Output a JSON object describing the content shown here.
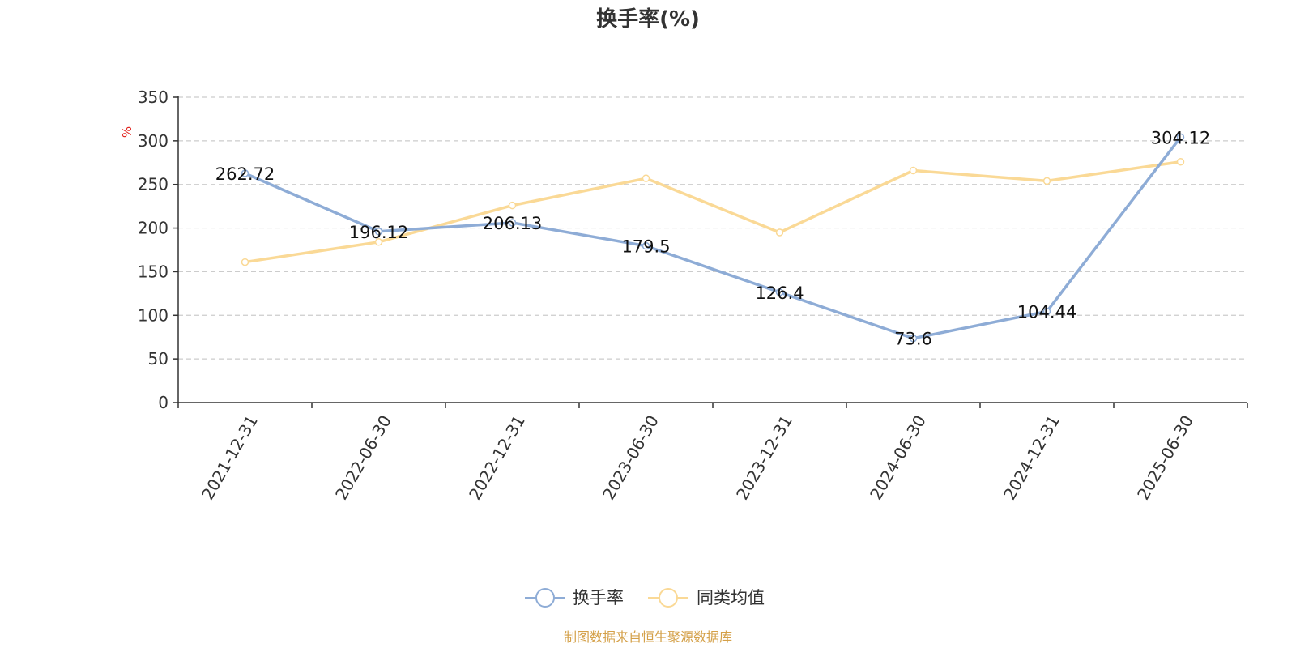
{
  "chart_data": {
    "type": "line",
    "title": "换手率(%)",
    "ylabel": "%",
    "ylim": [
      0,
      350
    ],
    "yticks": [
      0,
      50,
      100,
      150,
      200,
      250,
      300,
      350
    ],
    "grid": true,
    "legend_position": "bottom",
    "categories": [
      "2021-12-31",
      "2022-06-30",
      "2022-12-31",
      "2023-06-30",
      "2023-12-31",
      "2024-06-30",
      "2024-12-31",
      "2025-06-30"
    ],
    "series": [
      {
        "name": "换手率",
        "color": "#8eacd6",
        "values": [
          262.72,
          196.12,
          206.13,
          179.5,
          126.4,
          73.6,
          104.44,
          304.12
        ],
        "data_labels": [
          "262.72",
          "196.12",
          "206.13",
          "179.5",
          "126.4",
          "73.6",
          "104.44",
          "304.12"
        ]
      },
      {
        "name": "同类均值",
        "color": "#fad996",
        "values": [
          161,
          184,
          226,
          257,
          195,
          266,
          254,
          276
        ]
      }
    ]
  },
  "source_text": "制图数据来自恒生聚源数据库",
  "colors": {
    "unit": "#e0201b",
    "source": "#d4a048",
    "axis": "#333333",
    "grid": "#cccccc"
  }
}
